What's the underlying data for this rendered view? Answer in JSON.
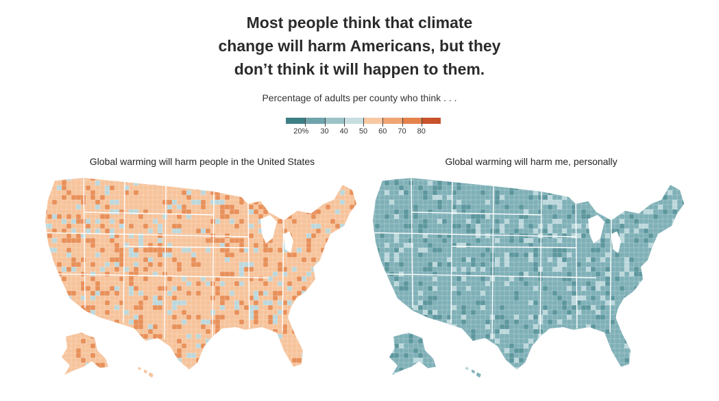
{
  "headline": {
    "line1": "Most people think that climate",
    "line2": "change will harm Americans, but they",
    "line3": "don’t think it will happen to them."
  },
  "subtitle": "Percentage of adults per county who think . . .",
  "legend": {
    "colors": [
      "#3e7f86",
      "#6fa4ab",
      "#9cc3c8",
      "#c7dee1",
      "#f8c8a2",
      "#f0a574",
      "#e5824c",
      "#c9522b"
    ],
    "labels": [
      "20%",
      "30",
      "40",
      "50",
      "60",
      "70",
      "80"
    ]
  },
  "maps": [
    {
      "title": "Global warming will harm people in the United States",
      "palette": "orange",
      "fill": "#f6c39b",
      "hot": "#e8905a",
      "cool": "#bcd8dc"
    },
    {
      "title": "Global warming will harm me, personally",
      "palette": "teal",
      "fill": "#7fb0b7",
      "hot": "#5d979e",
      "cool": "#bcd8dc"
    }
  ]
}
